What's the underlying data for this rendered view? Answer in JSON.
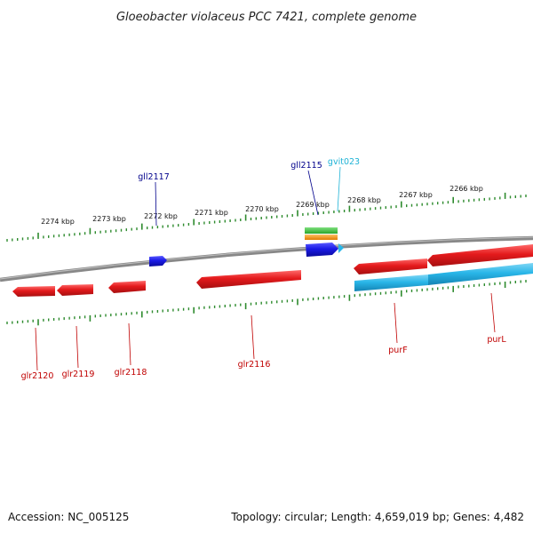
{
  "title": "Gloeobacter violaceus PCC 7421, complete genome",
  "footer": {
    "accession": "Accession: NC_005125",
    "topology": "Topology: circular; Length: 4,659,019 bp; Genes: 4,482"
  },
  "colors": {
    "backbone": "#888888",
    "ticks": "#2e8b2e",
    "reverse_gene": "#e41a1c",
    "forward_gene": "#1a1ae6",
    "blue_label": "#00008b",
    "red_label": "#c00000",
    "cyan_feature": "#29b6e8",
    "cyan_label": "#1fb3d6"
  },
  "scale": {
    "unit": "kbp",
    "labels": [
      "2274 kbp",
      "2273 kbp",
      "2272 kbp",
      "2271 kbp",
      "2270 kbp",
      "2269 kbp",
      "2268 kbp",
      "2267 kbp",
      "2266 kbp"
    ]
  },
  "genes": [
    {
      "name": "gll2117",
      "strand": "forward"
    },
    {
      "name": "gll2115",
      "strand": "forward"
    },
    {
      "name": "gvit023",
      "strand": "forward"
    },
    {
      "name": "glr2120",
      "strand": "reverse"
    },
    {
      "name": "glr2119",
      "strand": "reverse"
    },
    {
      "name": "glr2118",
      "strand": "reverse"
    },
    {
      "name": "glr2116",
      "strand": "reverse"
    },
    {
      "name": "purF",
      "strand": "reverse"
    },
    {
      "name": "purL",
      "strand": "reverse"
    }
  ]
}
